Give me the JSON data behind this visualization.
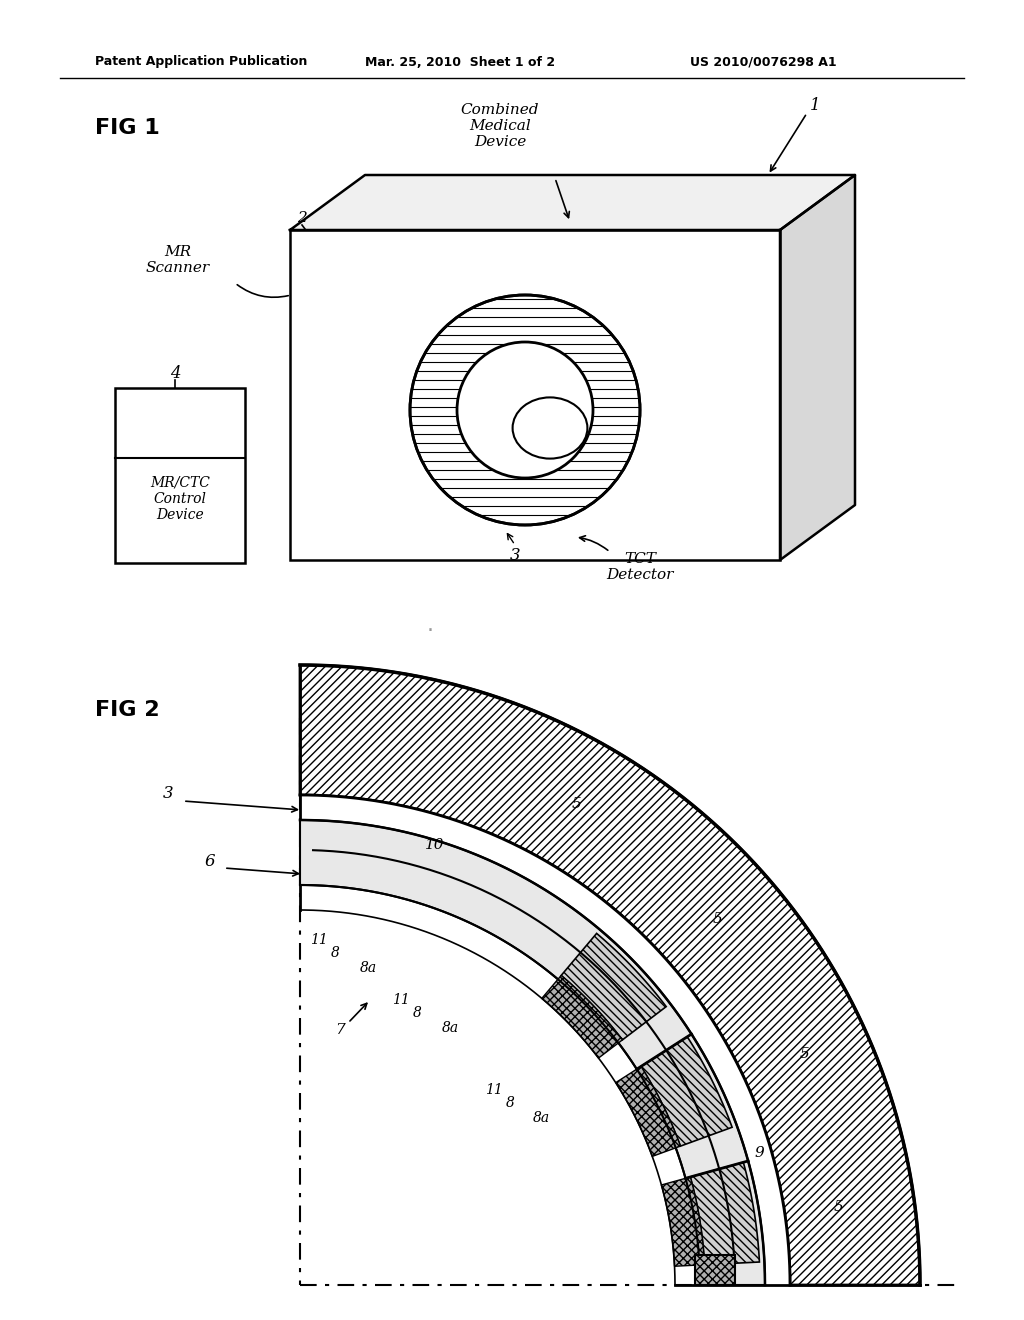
{
  "bg_color": "#ffffff",
  "header_text": "Patent Application Publication",
  "header_date": "Mar. 25, 2010  Sheet 1 of 2",
  "header_patent": "US 2010/0076298 A1",
  "fig1_label": "FIG 1",
  "fig2_label": "FIG 2",
  "annotation_combined": "Combined\nMedical\nDevice",
  "annotation_mr_scanner": "MR\nScanner",
  "annotation_mrc_control": "MR/CTC\nControl\nDevice",
  "annotation_tct": "TCT\nDetector",
  "label_1": "1",
  "label_2": "2",
  "label_3": "3",
  "label_4": "4",
  "label_5": "5",
  "label_6": "6",
  "label_7": "7",
  "label_8": "8",
  "label_8a": "8a",
  "label_9": "9",
  "label_10": "10",
  "label_11": "11"
}
